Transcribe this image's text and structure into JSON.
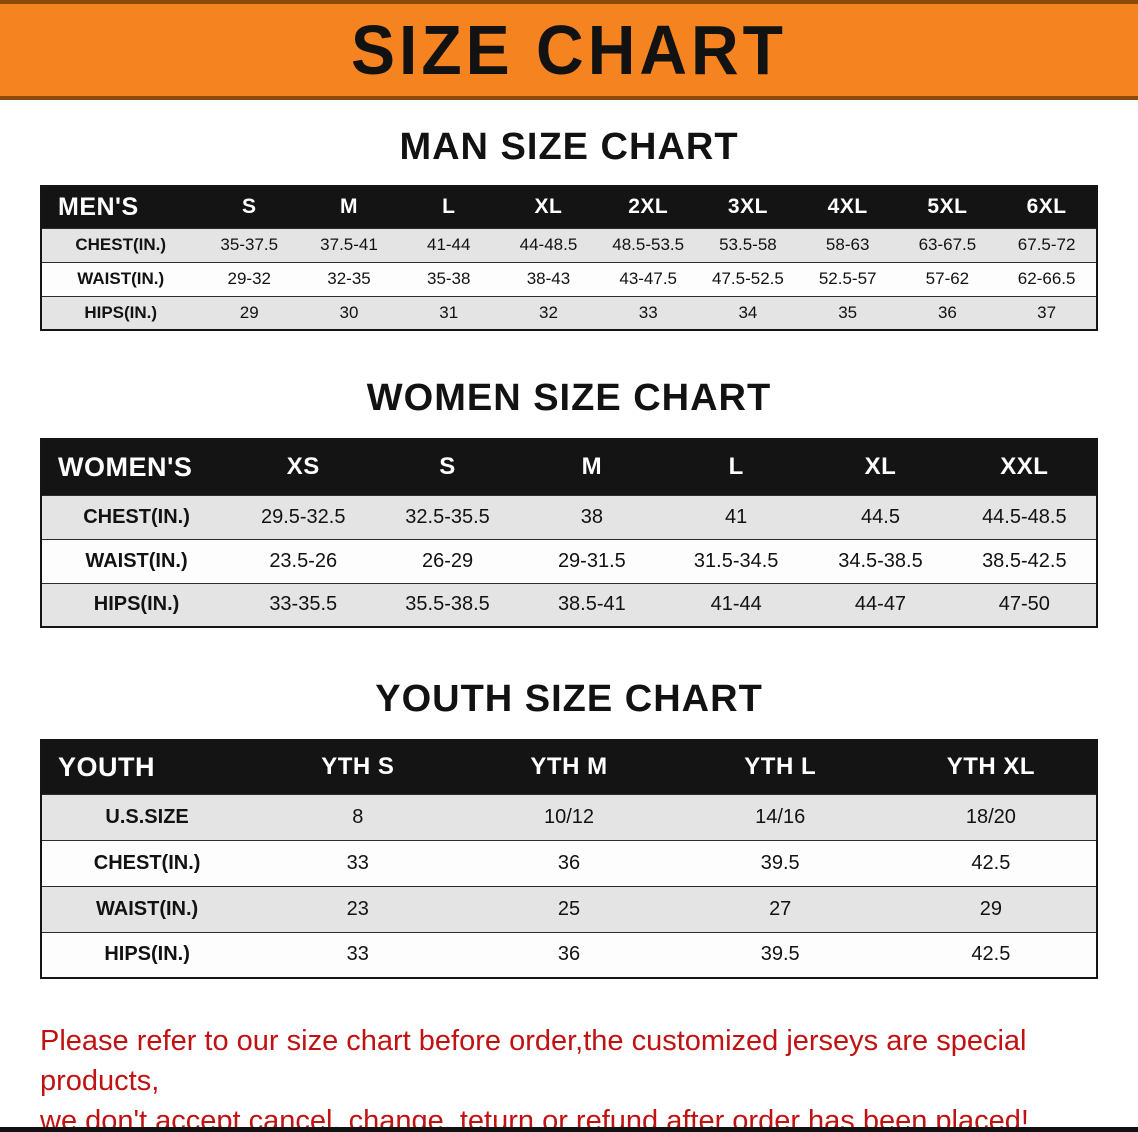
{
  "banner": {
    "title": "SIZE CHART"
  },
  "sections": {
    "men": {
      "heading": "MAN SIZE CHART",
      "table": {
        "header": [
          "MEN'S",
          "S",
          "M",
          "L",
          "XL",
          "2XL",
          "3XL",
          "4XL",
          "5XL",
          "6XL"
        ],
        "rows": [
          [
            "CHEST(IN.)",
            "35-37.5",
            "37.5-41",
            "41-44",
            "44-48.5",
            "48.5-53.5",
            "53.5-58",
            "58-63",
            "63-67.5",
            "67.5-72"
          ],
          [
            "WAIST(IN.)",
            "29-32",
            "32-35",
            "35-38",
            "38-43",
            "43-47.5",
            "47.5-52.5",
            "52.5-57",
            "57-62",
            "62-66.5"
          ],
          [
            "HIPS(IN.)",
            "29",
            "30",
            "31",
            "32",
            "33",
            "34",
            "35",
            "36",
            "37"
          ]
        ]
      }
    },
    "women": {
      "heading": "WOMEN SIZE CHART",
      "table": {
        "header": [
          "WOMEN'S",
          "XS",
          "S",
          "M",
          "L",
          "XL",
          "XXL"
        ],
        "rows": [
          [
            "CHEST(IN.)",
            "29.5-32.5",
            "32.5-35.5",
            "38",
            "41",
            "44.5",
            "44.5-48.5"
          ],
          [
            "WAIST(IN.)",
            "23.5-26",
            "26-29",
            "29-31.5",
            "31.5-34.5",
            "34.5-38.5",
            "38.5-42.5"
          ],
          [
            "HIPS(IN.)",
            "33-35.5",
            "35.5-38.5",
            "38.5-41",
            "41-44",
            "44-47",
            "47-50"
          ]
        ]
      }
    },
    "youth": {
      "heading": "YOUTH SIZE CHART",
      "table": {
        "header": [
          "YOUTH",
          "YTH S",
          "YTH M",
          "YTH L",
          "YTH XL"
        ],
        "rows": [
          [
            "U.S.SIZE",
            "8",
            "10/12",
            "14/16",
            "18/20"
          ],
          [
            "CHEST(IN.)",
            "33",
            "36",
            "39.5",
            "42.5"
          ],
          [
            "WAIST(IN.)",
            "23",
            "25",
            "27",
            "29"
          ],
          [
            "HIPS(IN.)",
            "33",
            "36",
            "39.5",
            "42.5"
          ]
        ]
      }
    }
  },
  "footer": {
    "line1": "Please refer to our size chart before order,the customized jerseys are special products,",
    "line2": "we don't accept cancel, change, teturn or refund after order has been placed!"
  },
  "colors": {
    "banner_bg": "#f5831f",
    "table_header_bg": "#141414",
    "row_alt": "#e4e4e4",
    "note_red": "#c11212"
  }
}
